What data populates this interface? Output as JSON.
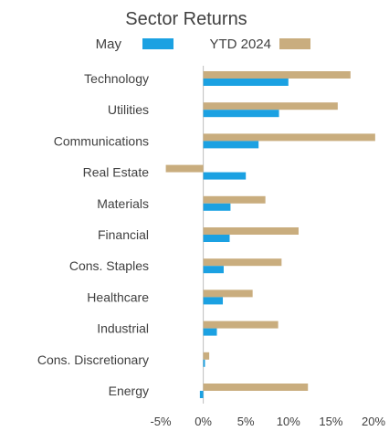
{
  "chart_data": {
    "type": "bar",
    "orientation": "horizontal",
    "title": "Sector Returns",
    "categories": [
      "Technology",
      "Utilities",
      "Communications",
      "Real Estate",
      "Materials",
      "Financial",
      "Cons. Staples",
      "Healthcare",
      "Industrial",
      "Cons. Discretionary",
      "Energy"
    ],
    "series": [
      {
        "name": "May",
        "color": "#1ba1e2",
        "values": [
          10.0,
          8.9,
          6.5,
          5.0,
          3.2,
          3.1,
          2.4,
          2.3,
          1.6,
          0.2,
          -0.4
        ]
      },
      {
        "name": "YTD 2024",
        "color": "#c9ad7e",
        "values": [
          17.3,
          15.8,
          20.2,
          -4.4,
          7.3,
          11.2,
          9.2,
          5.8,
          8.8,
          0.7,
          12.3
        ]
      }
    ],
    "xlim": [
      -5,
      20
    ],
    "xticks": [
      -5,
      0,
      5,
      10,
      15,
      20
    ],
    "xtick_labels": [
      "-5%",
      "0%",
      "5%",
      "10%",
      "15%",
      "20%"
    ],
    "xlabel": "",
    "ylabel": "",
    "legend": "top",
    "grid": false
  }
}
